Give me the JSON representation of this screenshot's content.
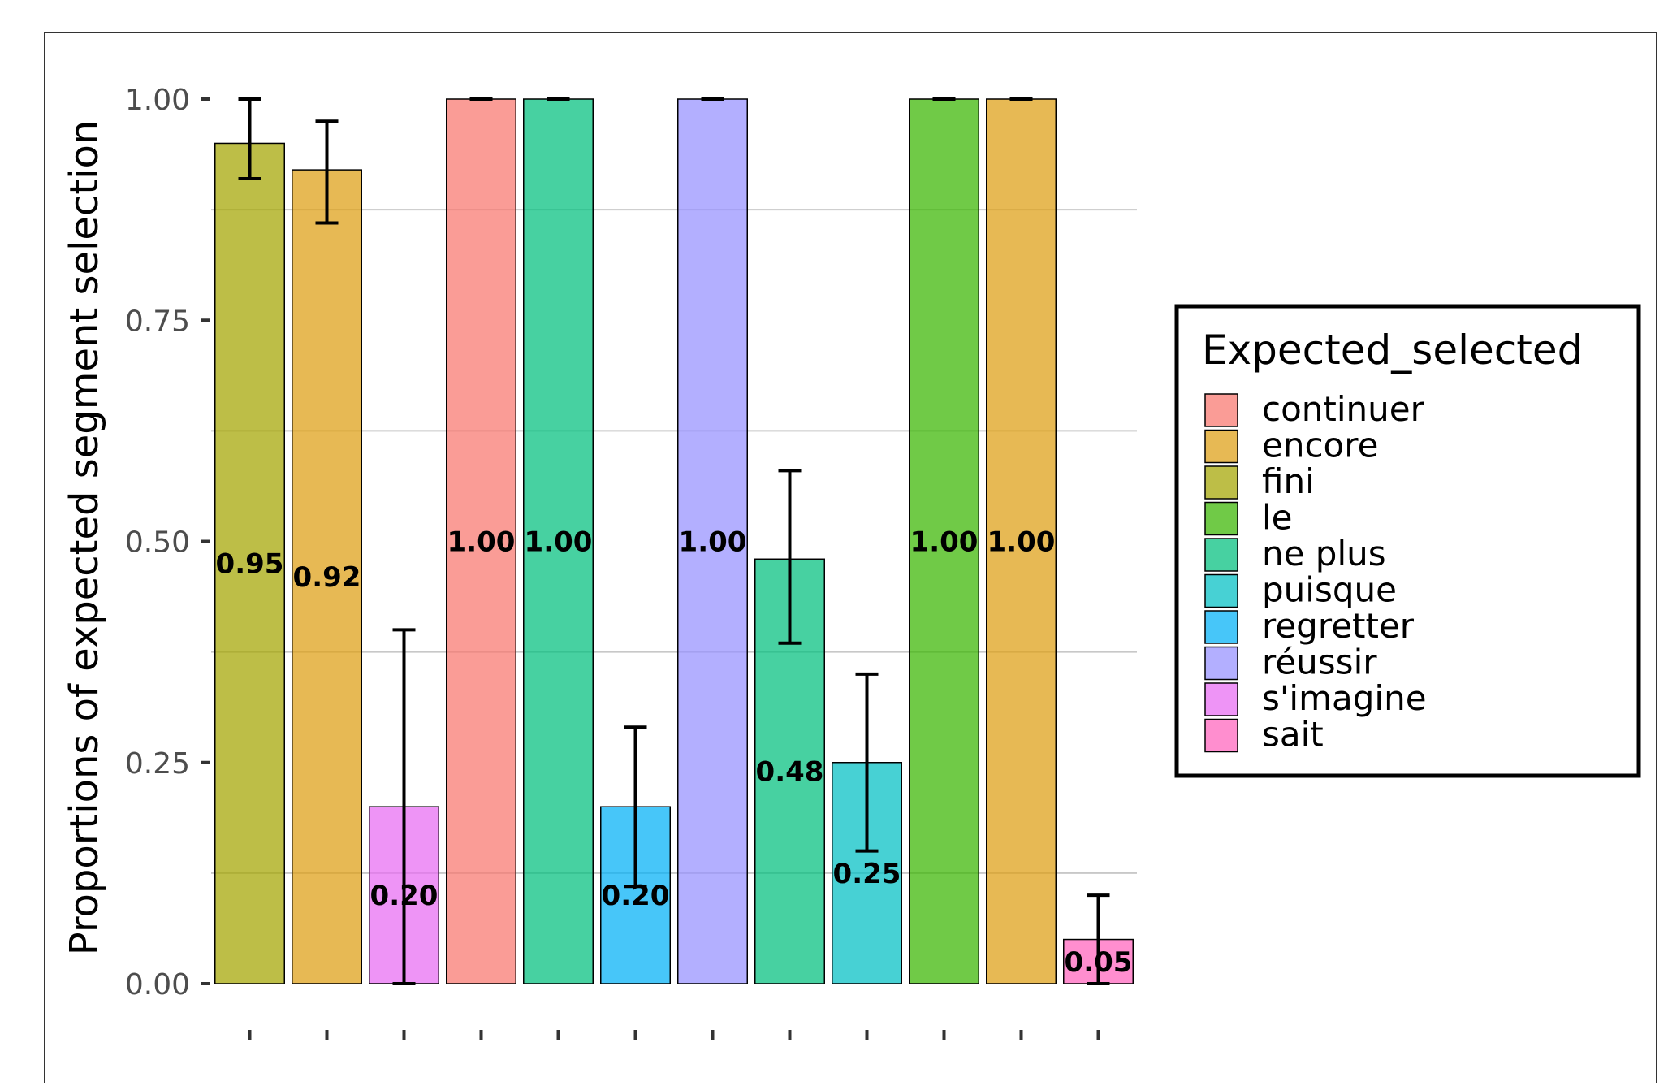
{
  "chart_data": {
    "type": "bar",
    "title": "",
    "xlabel": "",
    "ylabel": "Proportions of expected segment selection",
    "ylim": [
      0,
      1
    ],
    "yticks": [
      0.0,
      0.25,
      0.5,
      0.75,
      1.0
    ],
    "ytick_labels": [
      "0.00",
      "0.25",
      "0.50",
      "0.75",
      "1.00"
    ],
    "grid": "horizontal minor",
    "legend_position": "right",
    "legend": {
      "title": "Expected_selected",
      "items": [
        {
          "label": "continuer",
          "color": "#F8766D"
        },
        {
          "label": "encore",
          "color": "#DE9E12"
        },
        {
          "label": "fini",
          "color": "#A3A500"
        },
        {
          "label": "le",
          "color": "#39B600"
        },
        {
          "label": "ne plus",
          "color": "#00BF7D"
        },
        {
          "label": "puisque",
          "color": "#00BFC4"
        },
        {
          "label": "regretter",
          "color": "#00B0F6"
        },
        {
          "label": "réussir",
          "color": "#9590FF"
        },
        {
          "label": "s'imagine",
          "color": "#E76BF3"
        },
        {
          "label": "sait",
          "color": "#FF62BC"
        }
      ]
    },
    "bars": [
      {
        "group": "fini",
        "value": 0.95,
        "label": "0.95",
        "err_low": 0.91,
        "err_high": 1.0
      },
      {
        "group": "encore",
        "value": 0.92,
        "label": "0.92",
        "err_low": 0.86,
        "err_high": 0.975
      },
      {
        "group": "s'imagine",
        "value": 0.2,
        "label": "0.20",
        "err_low": 0.0,
        "err_high": 0.4
      },
      {
        "group": "continuer",
        "value": 1.0,
        "label": "1.00",
        "err_low": 1.0,
        "err_high": 1.0
      },
      {
        "group": "ne plus",
        "value": 1.0,
        "label": "1.00",
        "err_low": 1.0,
        "err_high": 1.0
      },
      {
        "group": "regretter",
        "value": 0.2,
        "label": "0.20",
        "err_low": 0.11,
        "err_high": 0.29
      },
      {
        "group": "réussir",
        "value": 1.0,
        "label": "1.00",
        "err_low": 1.0,
        "err_high": 1.0
      },
      {
        "group": "ne plus",
        "value": 0.48,
        "label": "0.48",
        "err_low": 0.385,
        "err_high": 0.58
      },
      {
        "group": "puisque",
        "value": 0.25,
        "label": "0.25",
        "err_low": 0.15,
        "err_high": 0.35
      },
      {
        "group": "le",
        "value": 1.0,
        "label": "1.00",
        "err_low": 1.0,
        "err_high": 1.0
      },
      {
        "group": "encore",
        "value": 1.0,
        "label": "1.00",
        "err_low": 1.0,
        "err_high": 1.0
      },
      {
        "group": "sait",
        "value": 0.05,
        "label": "0.05",
        "err_low": 0.0,
        "err_high": 0.1
      }
    ]
  }
}
